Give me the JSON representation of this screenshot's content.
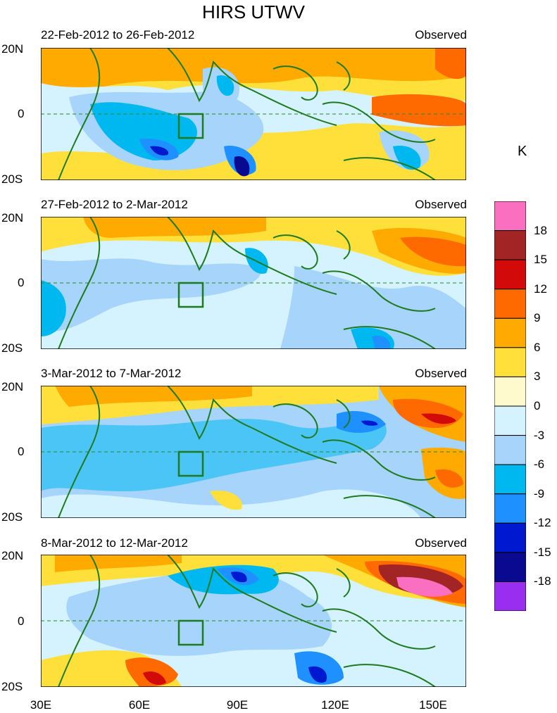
{
  "title": "HIRS UTWV",
  "unit_label": "K",
  "lat_labels": {
    "north": "20N",
    "equator": "0",
    "south": "20S"
  },
  "lon_labels": [
    "30E",
    "60E",
    "90E",
    "120E",
    "150E"
  ],
  "panels": [
    {
      "date_range": "22-Feb-2012 to 26-Feb-2012",
      "label": "Observed"
    },
    {
      "date_range": "27-Feb-2012 to 2-Mar-2012",
      "label": "Observed"
    },
    {
      "date_range": "3-Mar-2012 to 7-Mar-2012",
      "label": "Observed"
    },
    {
      "date_range": "8-Mar-2012 to 12-Mar-2012",
      "label": "Observed"
    }
  ],
  "colorbar": {
    "labels": [
      "18",
      "15",
      "12",
      "9",
      "6",
      "3",
      "0",
      "-3",
      "-6",
      "-9",
      "-12",
      "-15",
      "-18"
    ],
    "colors": [
      "#fb6fc0",
      "#a32424",
      "#d20a0a",
      "#ff6a00",
      "#ffaa00",
      "#ffe03a",
      "#fffacd",
      "#d4f3ff",
      "#a6d4fa",
      "#00b8f0",
      "#1e90ff",
      "#0018d0",
      "#0a0a90",
      "#9a2ef0"
    ]
  }
}
